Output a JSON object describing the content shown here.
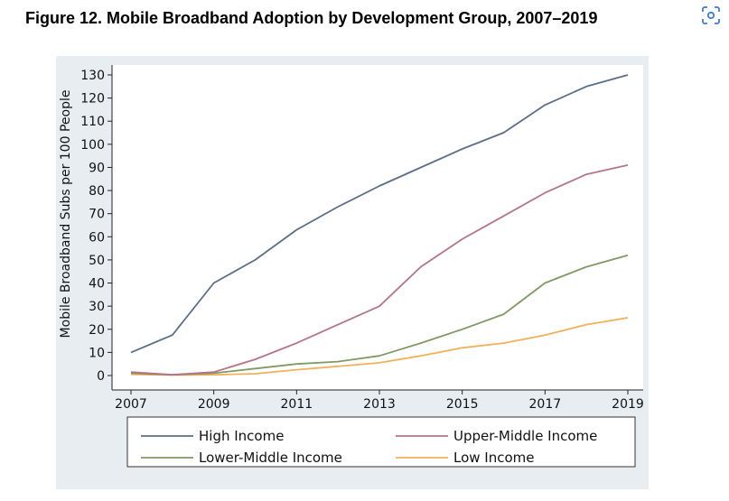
{
  "figure_title": "Figure 12. Mobile Broadband Adoption by Development Group, 2007–2019",
  "icons": {
    "scan": "scan-icon"
  },
  "colors": {
    "panel_bg": "#e8edf1",
    "plot_bg": "#ffffff"
  },
  "chart_data": {
    "type": "line",
    "title": "",
    "xlabel": "",
    "ylabel": "Mobile Broadband Subs per 100 People",
    "xlim": [
      2007,
      2019
    ],
    "ylim": [
      0,
      130
    ],
    "x_ticks": [
      2007,
      2009,
      2011,
      2013,
      2015,
      2017,
      2019
    ],
    "y_ticks": [
      0,
      10,
      20,
      30,
      40,
      50,
      60,
      70,
      80,
      90,
      100,
      110,
      120,
      130
    ],
    "grid": false,
    "legend_position": "bottom",
    "x": [
      2007,
      2008,
      2009,
      2010,
      2011,
      2012,
      2013,
      2014,
      2015,
      2016,
      2017,
      2018,
      2019
    ],
    "series": [
      {
        "name": "High Income",
        "color": "#5a6f88",
        "values": [
          10,
          17.5,
          40,
          50,
          63,
          73,
          82,
          90,
          98,
          105,
          117,
          125,
          130
        ]
      },
      {
        "name": "Upper-Middle Income",
        "color": "#b5748b",
        "values": [
          1.5,
          0.3,
          1.5,
          7,
          14,
          22,
          30,
          47,
          59,
          69,
          79,
          87,
          91
        ]
      },
      {
        "name": "Lower-Middle Income",
        "color": "#7f9a62",
        "values": [
          1,
          0.3,
          1,
          3,
          5,
          6,
          8.5,
          14,
          20,
          26.5,
          40,
          47,
          52
        ]
      },
      {
        "name": "Low Income",
        "color": "#f0b15a",
        "values": [
          0.5,
          0.2,
          0.3,
          0.8,
          2.5,
          4,
          5.5,
          8.5,
          12,
          14,
          17.5,
          22,
          25
        ]
      }
    ]
  }
}
